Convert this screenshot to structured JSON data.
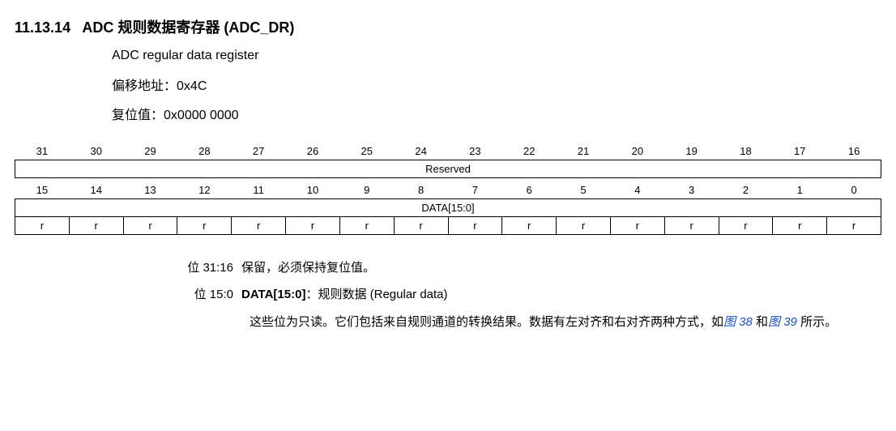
{
  "heading": {
    "number": "11.13.14",
    "title_zh": "ADC 规则数据寄存器 (ADC_DR)"
  },
  "subtitle_en": "ADC regular data register",
  "offset": {
    "label": "偏移地址：",
    "value": "0x4C"
  },
  "reset": {
    "label": "复位值：",
    "value": "0x0000 0000"
  },
  "bits_high": [
    "31",
    "30",
    "29",
    "28",
    "27",
    "26",
    "25",
    "24",
    "23",
    "22",
    "21",
    "20",
    "19",
    "18",
    "17",
    "16"
  ],
  "field_high": "Reserved",
  "bits_low": [
    "15",
    "14",
    "13",
    "12",
    "11",
    "10",
    "9",
    "8",
    "7",
    "6",
    "5",
    "4",
    "3",
    "2",
    "1",
    "0"
  ],
  "field_low": "DATA[15:0]",
  "access_low": [
    "r",
    "r",
    "r",
    "r",
    "r",
    "r",
    "r",
    "r",
    "r",
    "r",
    "r",
    "r",
    "r",
    "r",
    "r",
    "r"
  ],
  "desc": {
    "reserved": {
      "label": "位 31:16",
      "text": "保留，必须保持复位值。"
    },
    "data": {
      "label": "位 15:0",
      "name": "DATA[15:0]",
      "sep": "：",
      "title_rest": "规则数据 (Regular data)",
      "body_pre": "这些位为只读。它们包括来自规则通道的转换结果。数据有左对齐和右对齐两种方式，如",
      "fig1": "图 38",
      "and": " 和",
      "fig2": "图 39",
      "body_post": " 所示。"
    }
  }
}
